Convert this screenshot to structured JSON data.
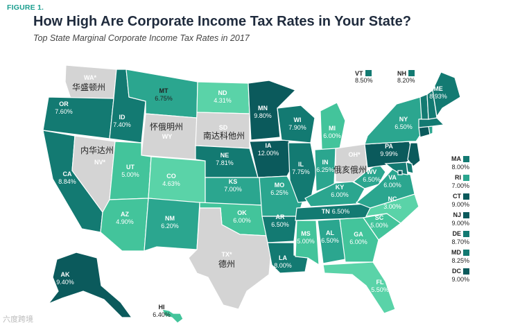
{
  "figure_label": "FIGURE 1.",
  "title": "How High Are Corporate Income Tax Rates in Your State?",
  "subtitle": "Top State Marginal Corporate Income Tax Rates in 2017",
  "colors": {
    "very_dark": "#0b5a5c",
    "dark": "#137a72",
    "mid": "#2ba68f",
    "light": "#43c49b",
    "lighter": "#5ad3a8",
    "none": "#d4d4d4"
  },
  "chart_data": {
    "type": "choropleth",
    "states": [
      {
        "abbr": "WA*",
        "rate": ""
      },
      {
        "abbr": "OR",
        "rate": "7.60%"
      },
      {
        "abbr": "CA",
        "rate": "8.84%"
      },
      {
        "abbr": "NV*",
        "rate": ""
      },
      {
        "abbr": "ID",
        "rate": "7.40%"
      },
      {
        "abbr": "MT",
        "rate": "6.75%"
      },
      {
        "abbr": "WY",
        "rate": ""
      },
      {
        "abbr": "UT",
        "rate": "5.00%"
      },
      {
        "abbr": "AZ",
        "rate": "4.90%"
      },
      {
        "abbr": "CO",
        "rate": "4.63%"
      },
      {
        "abbr": "NM",
        "rate": "6.20%"
      },
      {
        "abbr": "ND",
        "rate": "4.31%"
      },
      {
        "abbr": "SD",
        "rate": ""
      },
      {
        "abbr": "NE",
        "rate": "7.81%"
      },
      {
        "abbr": "KS",
        "rate": "7.00%"
      },
      {
        "abbr": "OK",
        "rate": "6.00%"
      },
      {
        "abbr": "TX*",
        "rate": ""
      },
      {
        "abbr": "MN",
        "rate": "9.80%"
      },
      {
        "abbr": "IA",
        "rate": "12.00%"
      },
      {
        "abbr": "MO",
        "rate": "6.25%"
      },
      {
        "abbr": "AR",
        "rate": "6.50%"
      },
      {
        "abbr": "LA",
        "rate": "8.00%"
      },
      {
        "abbr": "WI",
        "rate": "7.90%"
      },
      {
        "abbr": "IL",
        "rate": "7.75%"
      },
      {
        "abbr": "MI",
        "rate": "6.00%"
      },
      {
        "abbr": "IN",
        "rate": "6.25%"
      },
      {
        "abbr": "OH*",
        "rate": ""
      },
      {
        "abbr": "KY",
        "rate": "6.00%"
      },
      {
        "abbr": "TN",
        "rate": "6.50%"
      },
      {
        "abbr": "MS",
        "rate": "5.00%"
      },
      {
        "abbr": "AL",
        "rate": "6.50%"
      },
      {
        "abbr": "GA",
        "rate": "6.00%"
      },
      {
        "abbr": "FL",
        "rate": "5.50%"
      },
      {
        "abbr": "SC",
        "rate": "5.00%"
      },
      {
        "abbr": "NC",
        "rate": "3.00%"
      },
      {
        "abbr": "VA",
        "rate": "6.00%"
      },
      {
        "abbr": "WV",
        "rate": "6.50%"
      },
      {
        "abbr": "PA",
        "rate": "9.99%"
      },
      {
        "abbr": "NY",
        "rate": "6.50%"
      },
      {
        "abbr": "ME",
        "rate": "8.93%"
      },
      {
        "abbr": "AK",
        "rate": "9.40%"
      },
      {
        "abbr": "HI",
        "rate": "6.40%"
      },
      {
        "abbr": "VT",
        "rate": "8.50%"
      },
      {
        "abbr": "NH",
        "rate": "8.20%"
      },
      {
        "abbr": "MA",
        "rate": "8.00%"
      },
      {
        "abbr": "RI",
        "rate": "7.00%"
      },
      {
        "abbr": "CT",
        "rate": "9.00%"
      },
      {
        "abbr": "NJ",
        "rate": "9.00%"
      },
      {
        "abbr": "DE",
        "rate": "8.70%"
      },
      {
        "abbr": "MD",
        "rate": "8.25%"
      },
      {
        "abbr": "DC",
        "rate": "9.00%"
      }
    ]
  },
  "overlay_text": {
    "wa": "华盛顿州",
    "wy": "怀俄明州",
    "sd": "南达科他州",
    "nv": "内华达州",
    "oh": "俄亥俄州",
    "tx": "德州"
  },
  "watermark": "六度跨境"
}
